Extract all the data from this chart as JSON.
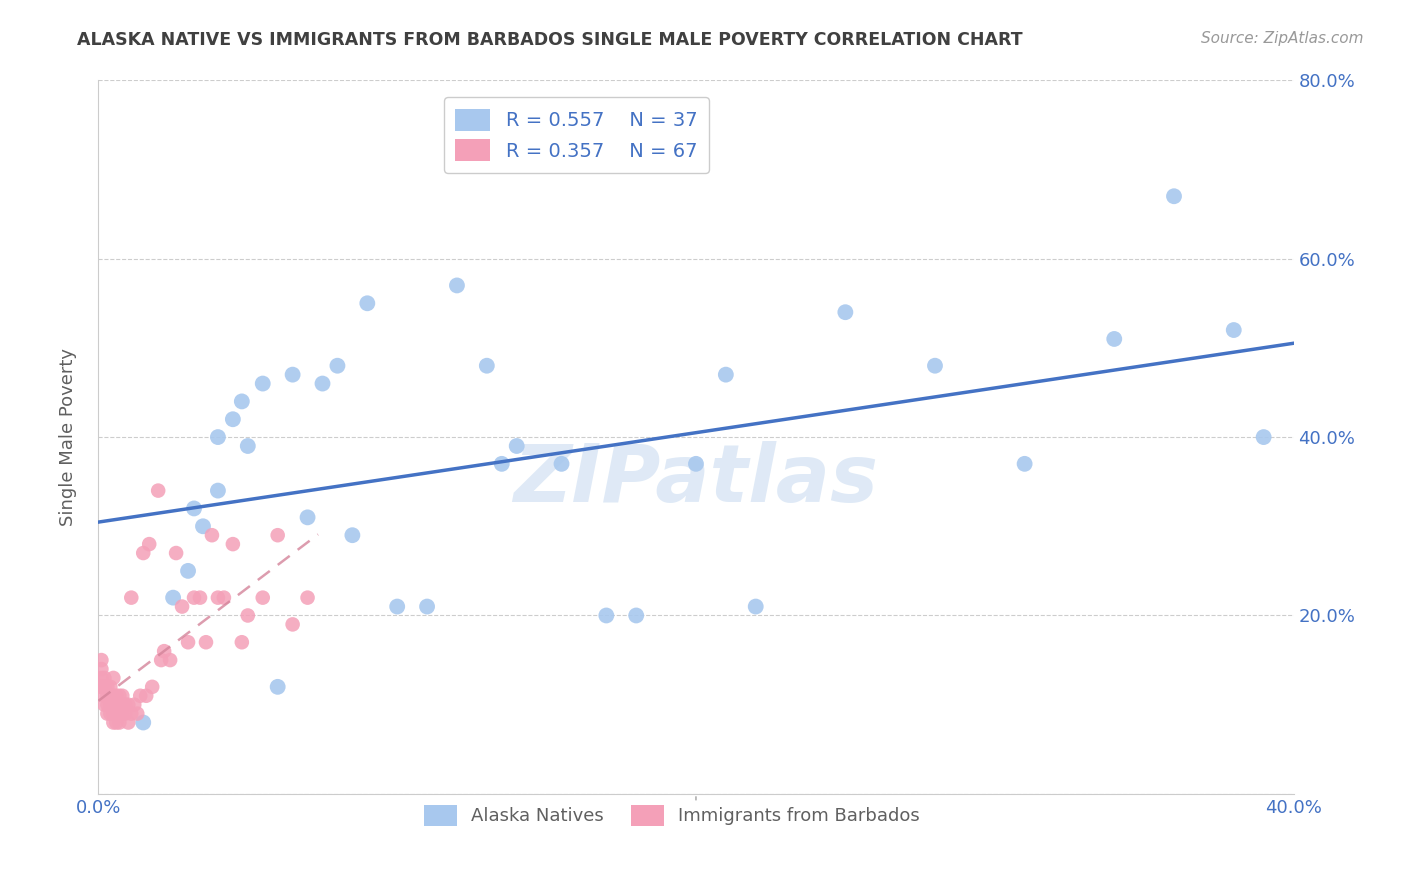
{
  "title": "ALASKA NATIVE VS IMMIGRANTS FROM BARBADOS SINGLE MALE POVERTY CORRELATION CHART",
  "source": "Source: ZipAtlas.com",
  "ylabel": "Single Male Poverty",
  "xlim": [
    0.0,
    0.4
  ],
  "ylim": [
    0.0,
    0.8
  ],
  "alaska_R": 0.557,
  "alaska_N": 37,
  "barbados_R": 0.357,
  "barbados_N": 67,
  "alaska_color": "#a8c8ee",
  "barbados_color": "#f4a0b8",
  "alaska_line_color": "#4472c4",
  "barbados_line_color": "#d4849a",
  "watermark": "ZIPatlas",
  "alaska_points_x": [
    0.015,
    0.025,
    0.03,
    0.032,
    0.035,
    0.04,
    0.04,
    0.045,
    0.048,
    0.05,
    0.055,
    0.06,
    0.065,
    0.07,
    0.075,
    0.08,
    0.085,
    0.09,
    0.1,
    0.11,
    0.12,
    0.13,
    0.135,
    0.14,
    0.155,
    0.17,
    0.18,
    0.2,
    0.21,
    0.22,
    0.25,
    0.28,
    0.31,
    0.34,
    0.36,
    0.38,
    0.39
  ],
  "alaska_points_y": [
    0.08,
    0.22,
    0.25,
    0.32,
    0.3,
    0.34,
    0.4,
    0.42,
    0.44,
    0.39,
    0.46,
    0.12,
    0.47,
    0.31,
    0.46,
    0.48,
    0.29,
    0.55,
    0.21,
    0.21,
    0.57,
    0.48,
    0.37,
    0.39,
    0.37,
    0.2,
    0.2,
    0.37,
    0.47,
    0.21,
    0.54,
    0.48,
    0.37,
    0.51,
    0.67,
    0.52,
    0.4
  ],
  "barbados_points_x": [
    0.001,
    0.001,
    0.001,
    0.001,
    0.001,
    0.002,
    0.002,
    0.002,
    0.002,
    0.002,
    0.003,
    0.003,
    0.003,
    0.003,
    0.004,
    0.004,
    0.004,
    0.004,
    0.005,
    0.005,
    0.005,
    0.005,
    0.005,
    0.006,
    0.006,
    0.006,
    0.006,
    0.007,
    0.007,
    0.007,
    0.007,
    0.008,
    0.008,
    0.008,
    0.009,
    0.009,
    0.01,
    0.01,
    0.011,
    0.011,
    0.012,
    0.013,
    0.014,
    0.015,
    0.016,
    0.017,
    0.018,
    0.02,
    0.021,
    0.022,
    0.024,
    0.026,
    0.028,
    0.03,
    0.032,
    0.034,
    0.036,
    0.038,
    0.04,
    0.042,
    0.045,
    0.048,
    0.05,
    0.055,
    0.06,
    0.065,
    0.07
  ],
  "barbados_points_y": [
    0.12,
    0.12,
    0.13,
    0.14,
    0.15,
    0.1,
    0.11,
    0.12,
    0.12,
    0.13,
    0.09,
    0.1,
    0.11,
    0.12,
    0.09,
    0.1,
    0.11,
    0.12,
    0.08,
    0.09,
    0.1,
    0.11,
    0.13,
    0.08,
    0.09,
    0.1,
    0.11,
    0.08,
    0.09,
    0.1,
    0.11,
    0.09,
    0.1,
    0.11,
    0.09,
    0.1,
    0.08,
    0.1,
    0.09,
    0.22,
    0.1,
    0.09,
    0.11,
    0.27,
    0.11,
    0.28,
    0.12,
    0.34,
    0.15,
    0.16,
    0.15,
    0.27,
    0.21,
    0.17,
    0.22,
    0.22,
    0.17,
    0.29,
    0.22,
    0.22,
    0.28,
    0.17,
    0.2,
    0.22,
    0.29,
    0.19,
    0.22
  ],
  "background_color": "#ffffff",
  "grid_color": "#c8c8c8",
  "tick_label_color": "#4472c4",
  "title_color": "#404040",
  "ylabel_color": "#606060",
  "alaska_line_x": [
    0.015,
    0.4
  ],
  "alaska_line_y_intercept": 0.222,
  "alaska_line_slope": 0.95,
  "barbados_line_x": [
    0.001,
    0.072
  ],
  "barbados_line_y_intercept": 0.1,
  "barbados_line_slope": 1.85
}
